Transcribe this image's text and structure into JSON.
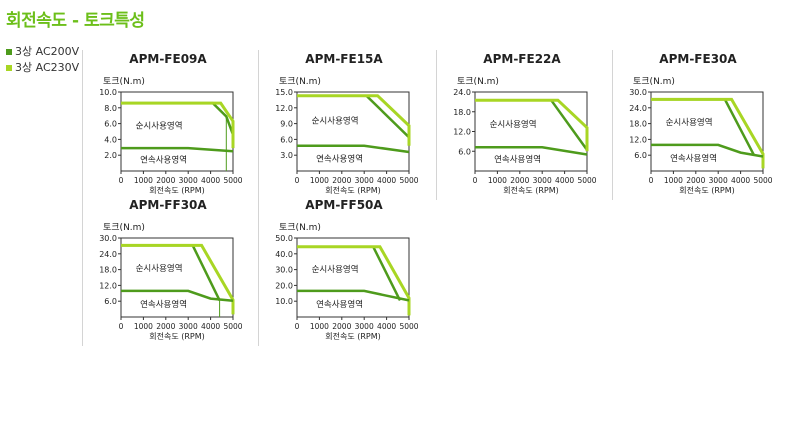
{
  "page": {
    "title": "회전속도 - 토크특성"
  },
  "legend": [
    {
      "label": "3상 AC200V",
      "color": "#4e9b1c"
    },
    {
      "label": "3상 AC230V",
      "color": "#a8d624"
    }
  ],
  "colors": {
    "ac200v": "#4e9b1c",
    "ac230v": "#a8d624",
    "accent": "#6cbf1a"
  },
  "chart_data": [
    {
      "type": "line",
      "title": "APM-FE09A",
      "ylabel": "토크(N.m)",
      "xlabel": "회전속도 (RPM)",
      "xlim": [
        0,
        5000
      ],
      "ylim": [
        0,
        10
      ],
      "x_ticks": [
        "0",
        "1000",
        "2000",
        "3000",
        "4000",
        "5000"
      ],
      "y_ticks": [
        "2.0",
        "4.0",
        "6.0",
        "8.0",
        "10.0"
      ],
      "y_tick_values": [
        2,
        4,
        6,
        8,
        10
      ],
      "region_labels": {
        "peak": "순시사용영역",
        "continuous": "연속사용영역"
      },
      "series": [
        {
          "name": "3상 AC200V",
          "curve": "peak",
          "points": [
            [
              0,
              8.6
            ],
            [
              4100,
              8.6
            ],
            [
              4700,
              6.9
            ],
            [
              5000,
              4.6
            ]
          ]
        },
        {
          "name": "3상 AC230V",
          "curve": "peak",
          "points": [
            [
              0,
              8.6
            ],
            [
              4450,
              8.6
            ],
            [
              5000,
              6.3
            ],
            [
              5000,
              2.9
            ]
          ]
        },
        {
          "name": "3상 AC200V",
          "curve": "continuous",
          "points": [
            [
              0,
              2.9
            ],
            [
              3000,
              2.9
            ],
            [
              5000,
              2.5
            ]
          ]
        },
        {
          "name": "3상 AC200V",
          "curve": "boundary",
          "points": [
            [
              4700,
              6.9
            ],
            [
              4700,
              0
            ]
          ]
        }
      ]
    },
    {
      "type": "line",
      "title": "APM-FE15A",
      "ylabel": "토크(N.m)",
      "xlabel": "회전속도 (RPM)",
      "xlim": [
        0,
        5000
      ],
      "ylim": [
        0,
        15
      ],
      "x_ticks": [
        "0",
        "1000",
        "2000",
        "3000",
        "4000",
        "5000"
      ],
      "y_ticks": [
        "3.0",
        "6.0",
        "9.0",
        "12.0",
        "15.0"
      ],
      "y_tick_values": [
        3,
        6,
        9,
        12,
        15
      ],
      "region_labels": {
        "peak": "순시사용영역",
        "continuous": "연속사용영역"
      },
      "series": [
        {
          "name": "3상 AC200V",
          "curve": "peak",
          "points": [
            [
              0,
              14.3
            ],
            [
              3100,
              14.3
            ],
            [
              5000,
              6.4
            ]
          ]
        },
        {
          "name": "3상 AC230V",
          "curve": "peak",
          "points": [
            [
              0,
              14.3
            ],
            [
              3600,
              14.3
            ],
            [
              5000,
              8.6
            ],
            [
              5000,
              4.8
            ]
          ]
        },
        {
          "name": "3상 AC200V",
          "curve": "continuous",
          "points": [
            [
              0,
              4.8
            ],
            [
              3000,
              4.8
            ],
            [
              5000,
              3.6
            ]
          ]
        }
      ]
    },
    {
      "type": "line",
      "title": "APM-FE22A",
      "ylabel": "토크(N.m)",
      "xlabel": "회전속도 (RPM)",
      "xlim": [
        0,
        5000
      ],
      "ylim": [
        0,
        24
      ],
      "x_ticks": [
        "0",
        "1000",
        "2000",
        "3000",
        "4000",
        "5000"
      ],
      "y_ticks": [
        "6.0",
        "12.0",
        "18.0",
        "24.0"
      ],
      "y_tick_values": [
        6,
        12,
        18,
        24
      ],
      "region_labels": {
        "peak": "순시사용영역",
        "continuous": "연속사용영역"
      },
      "series": [
        {
          "name": "3상 AC200V",
          "curve": "peak",
          "points": [
            [
              0,
              21.5
            ],
            [
              3400,
              21.5
            ],
            [
              5000,
              6.4
            ]
          ]
        },
        {
          "name": "3상 AC230V",
          "curve": "peak",
          "points": [
            [
              0,
              21.5
            ],
            [
              3700,
              21.5
            ],
            [
              5000,
              13.2
            ],
            [
              5000,
              6.0
            ]
          ]
        },
        {
          "name": "3상 AC200V",
          "curve": "continuous",
          "points": [
            [
              0,
              7.2
            ],
            [
              3000,
              7.2
            ],
            [
              5000,
              5.0
            ]
          ]
        }
      ]
    },
    {
      "type": "line",
      "title": "APM-FE30A",
      "ylabel": "토크(N.m)",
      "xlabel": "회전속도 (RPM)",
      "xlim": [
        0,
        5000
      ],
      "ylim": [
        0,
        30
      ],
      "x_ticks": [
        "0",
        "1000",
        "2000",
        "3000",
        "4000",
        "5000"
      ],
      "y_ticks": [
        "6.0",
        "12.0",
        "18.0",
        "24.0",
        "30.0"
      ],
      "y_tick_values": [
        6,
        12,
        18,
        24,
        30
      ],
      "region_labels": {
        "peak": "순시사용영역",
        "continuous": "연속사용영역"
      },
      "series": [
        {
          "name": "3상 AC200V",
          "curve": "peak",
          "points": [
            [
              0,
              27.2
            ],
            [
              3300,
              27.2
            ],
            [
              4600,
              6.0
            ]
          ]
        },
        {
          "name": "3상 AC230V",
          "curve": "peak",
          "points": [
            [
              0,
              27.2
            ],
            [
              3600,
              27.2
            ],
            [
              5000,
              6.5
            ],
            [
              5000,
              1.0
            ]
          ]
        },
        {
          "name": "3상 AC200V",
          "curve": "continuous",
          "points": [
            [
              0,
              9.9
            ],
            [
              3000,
              9.9
            ],
            [
              4000,
              7.0
            ],
            [
              5000,
              5.5
            ]
          ]
        }
      ]
    },
    {
      "type": "line",
      "title": "APM-FF30A",
      "ylabel": "토크(N.m)",
      "xlabel": "회전속도 (RPM)",
      "xlim": [
        0,
        5000
      ],
      "ylim": [
        0,
        30
      ],
      "x_ticks": [
        "0",
        "1000",
        "2000",
        "3000",
        "4000",
        "5000"
      ],
      "y_ticks": [
        "6.0",
        "12.0",
        "18.0",
        "24.0",
        "30.0"
      ],
      "y_tick_values": [
        6,
        12,
        18,
        24,
        30
      ],
      "region_labels": {
        "peak": "순시사용영역",
        "continuous": "연속사용영역"
      },
      "series": [
        {
          "name": "3상 AC200V",
          "curve": "peak",
          "points": [
            [
              0,
              27.2
            ],
            [
              3200,
              27.2
            ],
            [
              4400,
              6.3
            ]
          ]
        },
        {
          "name": "3상 AC230V",
          "curve": "peak",
          "points": [
            [
              0,
              27.2
            ],
            [
              3600,
              27.2
            ],
            [
              5000,
              6.5
            ],
            [
              5000,
              1.0
            ]
          ]
        },
        {
          "name": "3상 AC200V",
          "curve": "continuous",
          "points": [
            [
              0,
              9.9
            ],
            [
              3000,
              9.9
            ],
            [
              4000,
              7.0
            ],
            [
              5000,
              6.2
            ]
          ]
        },
        {
          "name": "3상 AC200V",
          "curve": "boundary",
          "points": [
            [
              4400,
              6.3
            ],
            [
              4400,
              0
            ]
          ]
        }
      ]
    },
    {
      "type": "line",
      "title": "APM-FF50A",
      "ylabel": "토크(N.m)",
      "xlabel": "회전속도 (RPM)",
      "xlim": [
        0,
        5000
      ],
      "ylim": [
        0,
        50
      ],
      "x_ticks": [
        "0",
        "1000",
        "2000",
        "3000",
        "4000",
        "5000"
      ],
      "y_ticks": [
        "10.0",
        "20.0",
        "30.0",
        "40.0",
        "50.0"
      ],
      "y_tick_values": [
        10,
        20,
        30,
        40,
        50
      ],
      "region_labels": {
        "peak": "순시사용영역",
        "continuous": "연속사용영역"
      },
      "series": [
        {
          "name": "3상 AC200V",
          "curve": "peak",
          "points": [
            [
              0,
              44.5
            ],
            [
              3400,
              44.5
            ],
            [
              4600,
              10.5
            ]
          ]
        },
        {
          "name": "3상 AC230V",
          "curve": "peak",
          "points": [
            [
              0,
              44.5
            ],
            [
              3700,
              44.5
            ],
            [
              5000,
              12.0
            ],
            [
              5000,
              1.0
            ]
          ]
        },
        {
          "name": "3상 AC200V",
          "curve": "continuous",
          "points": [
            [
              0,
              16.5
            ],
            [
              3000,
              16.5
            ],
            [
              4000,
              13.5
            ],
            [
              5000,
              10.5
            ]
          ]
        }
      ]
    }
  ]
}
